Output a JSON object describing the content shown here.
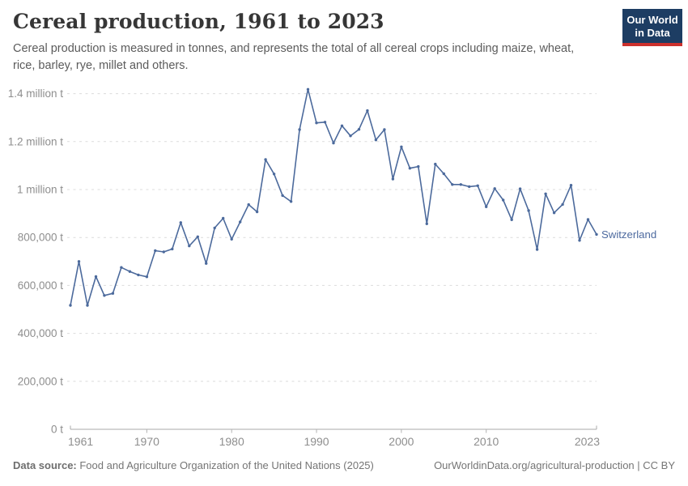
{
  "header": {
    "title": "Cereal production, 1961 to 2023",
    "subtitle_line1": "Cereal production is measured in tonnes, and represents the total of all cereal crops including maize, wheat,",
    "subtitle_line2": "rice, barley, rye, millet and others.",
    "logo": {
      "line1": "Our World",
      "line2": "in Data",
      "bg_color": "#1d3d63",
      "accent_color": "#cc302c"
    }
  },
  "footer": {
    "source_label": "Data source:",
    "source_text": " Food and Agriculture Organization of the United Nations (2025)",
    "link_text": "OurWorldinData.org/agricultural-production | CC BY"
  },
  "chart_data": {
    "type": "line",
    "title": "Cereal production, 1961 to 2023",
    "unit": "tonnes",
    "entity_label": "Switzerland",
    "xlim": [
      1961,
      2023
    ],
    "ylim": [
      0,
      1400000
    ],
    "grid": "horizontal dashed",
    "legend_position": "end-of-line label",
    "line_color": "#4C6A9C",
    "entity_label_color": "#4d6a9f",
    "axis_label_color": "#8e8e8e",
    "gridline_color": "#dcdcdc",
    "axis_line_color": "#a8a8a8",
    "y_ticks": [
      {
        "value": 0,
        "label": "0 t"
      },
      {
        "value": 200000,
        "label": "200,000 t"
      },
      {
        "value": 400000,
        "label": "400,000 t"
      },
      {
        "value": 600000,
        "label": "600,000 t"
      },
      {
        "value": 800000,
        "label": "800,000 t"
      },
      {
        "value": 1000000,
        "label": "1 million t"
      },
      {
        "value": 1200000,
        "label": "1.2 million t"
      },
      {
        "value": 1400000,
        "label": "1.4 million t"
      }
    ],
    "x_ticks": [
      {
        "value": 1961,
        "label": "1961"
      },
      {
        "value": 1970,
        "label": "1970"
      },
      {
        "value": 1980,
        "label": "1980"
      },
      {
        "value": 1990,
        "label": "1990"
      },
      {
        "value": 2000,
        "label": "2000"
      },
      {
        "value": 2010,
        "label": "2010"
      },
      {
        "value": 2023,
        "label": "2023"
      }
    ],
    "series": [
      {
        "name": "Switzerland",
        "x": [
          1961,
          1962,
          1963,
          1964,
          1965,
          1966,
          1967,
          1968,
          1969,
          1970,
          1971,
          1972,
          1973,
          1974,
          1975,
          1976,
          1977,
          1978,
          1979,
          1980,
          1981,
          1982,
          1983,
          1984,
          1985,
          1986,
          1987,
          1988,
          1989,
          1990,
          1991,
          1992,
          1993,
          1994,
          1995,
          1996,
          1997,
          1998,
          1999,
          2000,
          2001,
          2002,
          2003,
          2004,
          2005,
          2006,
          2007,
          2008,
          2009,
          2010,
          2011,
          2012,
          2013,
          2014,
          2015,
          2016,
          2017,
          2018,
          2019,
          2020,
          2021,
          2022,
          2023
        ],
        "values": [
          517000,
          700000,
          517000,
          637000,
          558000,
          567000,
          675000,
          658000,
          644000,
          636000,
          745000,
          740000,
          752000,
          862000,
          765000,
          803000,
          692000,
          840000,
          880000,
          793000,
          865000,
          937000,
          907000,
          1125000,
          1065000,
          975000,
          950000,
          1250000,
          1418000,
          1278000,
          1281000,
          1194000,
          1266000,
          1224000,
          1251000,
          1329000,
          1207000,
          1250000,
          1044000,
          1178000,
          1089000,
          1096000,
          857000,
          1106000,
          1066000,
          1021000,
          1021000,
          1012000,
          1016000,
          928000,
          1004000,
          956000,
          874000,
          1003000,
          912000,
          750000,
          982000,
          903000,
          938000,
          1018000,
          788000,
          875000,
          813000
        ]
      }
    ]
  }
}
